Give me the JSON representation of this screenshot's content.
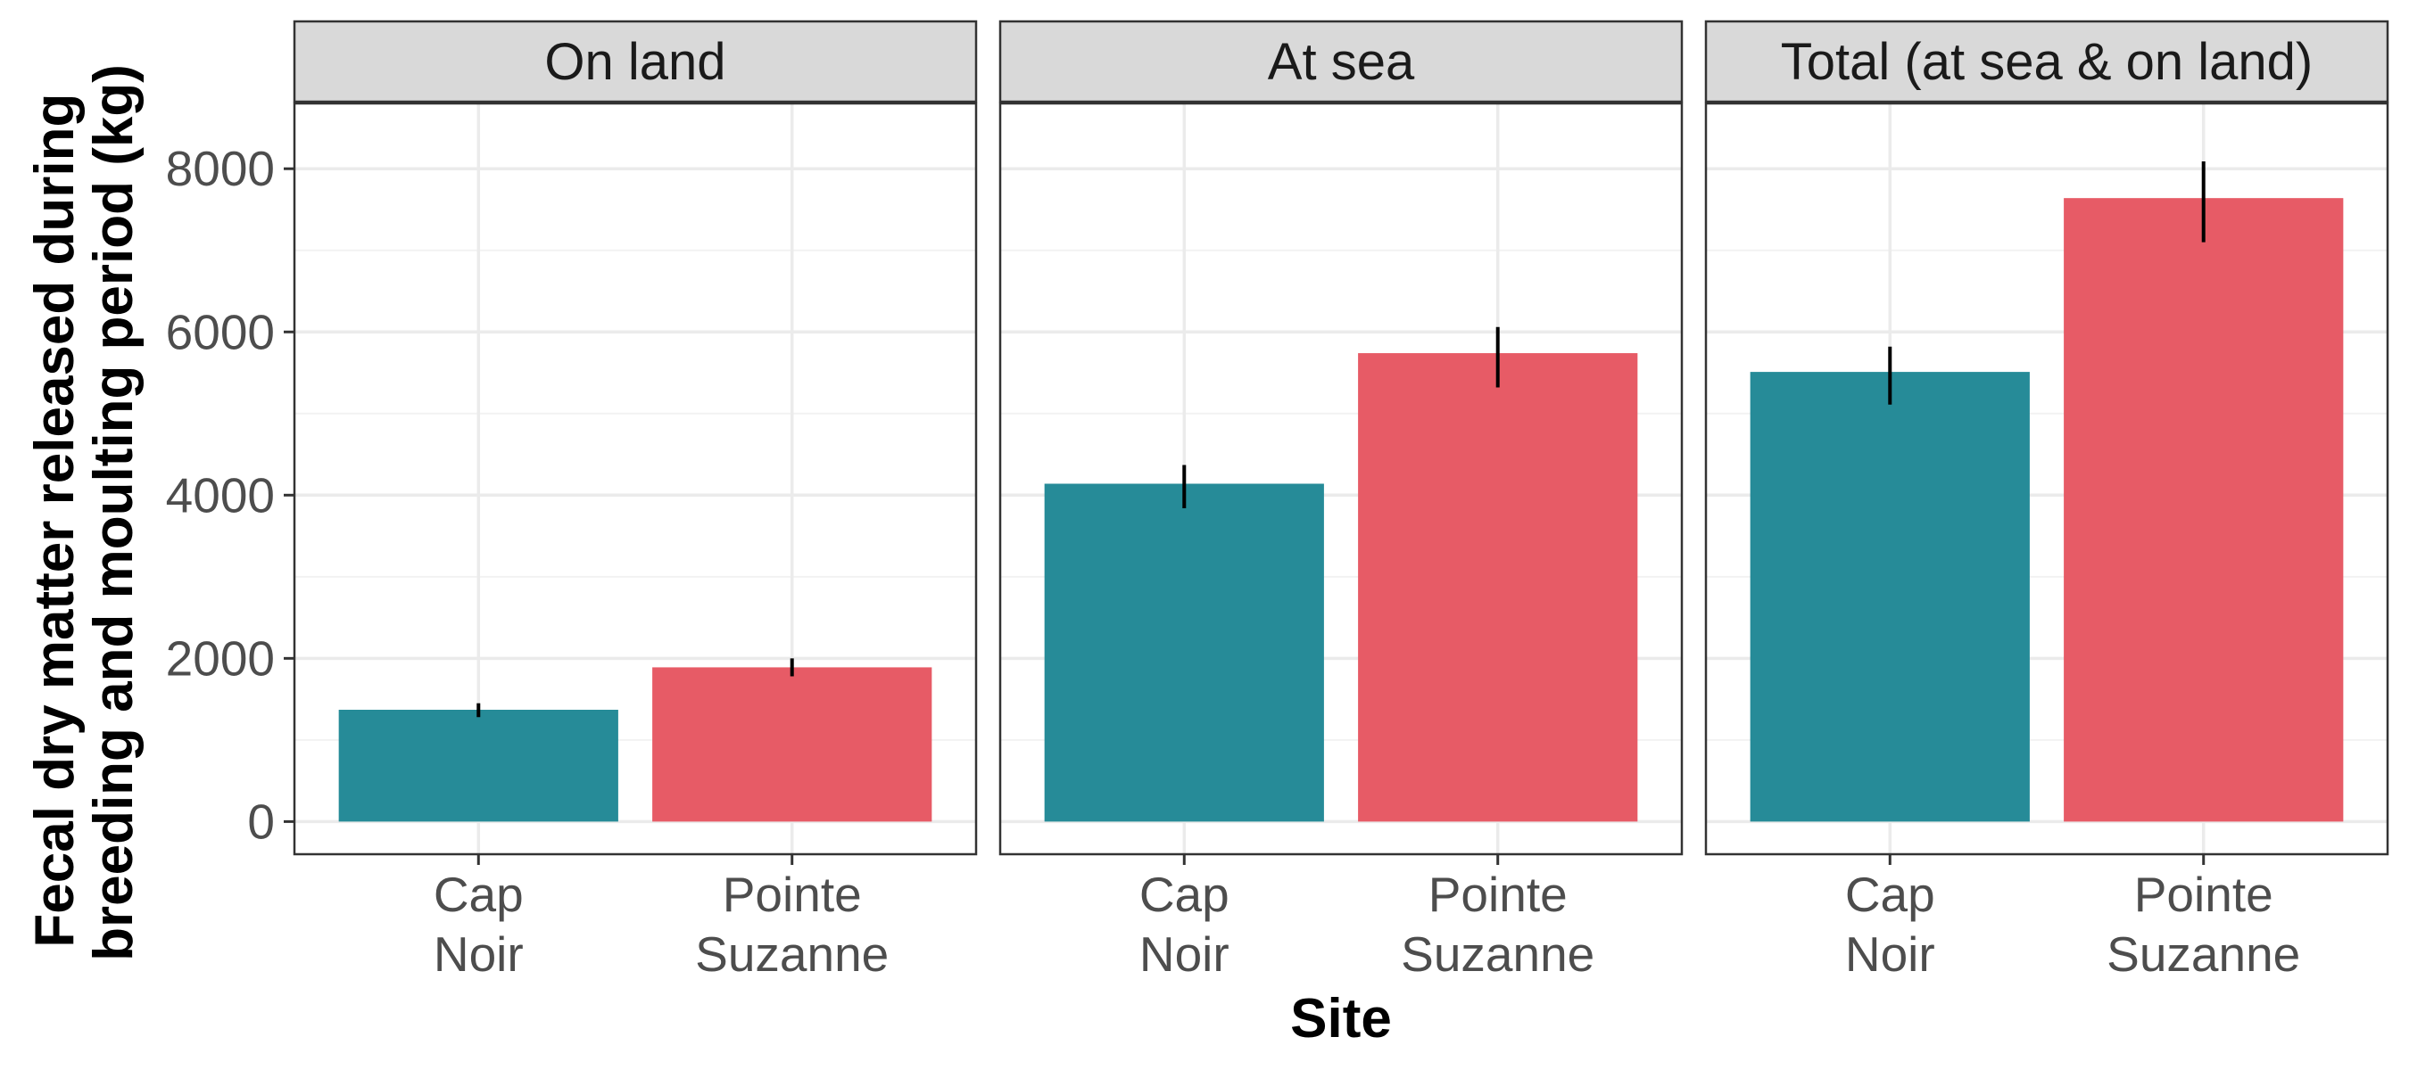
{
  "chart_data": {
    "type": "bar",
    "facets": [
      "On land",
      "At sea",
      "Total (at sea & on land)"
    ],
    "categories": [
      [
        "Cap",
        "Noir"
      ],
      [
        "Pointe",
        "Suzanne"
      ]
    ],
    "values": [
      [
        1370,
        1890
      ],
      [
        4140,
        5740
      ],
      [
        5510,
        7640
      ]
    ],
    "errors": [
      [
        [
          1280,
          1450
        ],
        [
          1780,
          2000
        ]
      ],
      [
        [
          3840,
          4370
        ],
        [
          5320,
          6060
        ]
      ],
      [
        [
          5110,
          5820
        ],
        [
          7100,
          8090
        ]
      ]
    ],
    "xlabel": "Site",
    "ylabel": [
      "Fecal dry matter released during",
      "breeding and moulting period (kg)"
    ],
    "ylim": [
      -400,
      8800
    ],
    "yticks": [
      0,
      2000,
      4000,
      6000,
      8000
    ],
    "legend": "none",
    "grid": true,
    "colors": {
      "Cap Noir": "#268b98",
      "Pointe Suzanne": "#e75b66"
    }
  }
}
